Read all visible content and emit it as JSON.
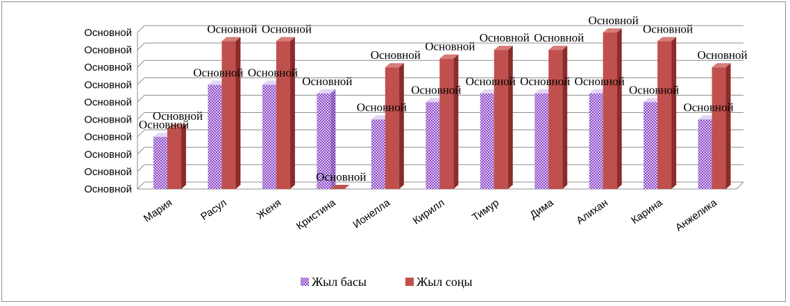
{
  "chart_data": {
    "type": "bar",
    "title": "",
    "xlabel": "",
    "ylabel": "",
    "categories": [
      "Мария",
      "Расул",
      "Женя",
      "Кристина",
      "Ионелла",
      "Кирилл",
      "Тимур",
      "Дима",
      "Алихан",
      "Карина",
      "Анжелика"
    ],
    "y_tick_labels": [
      "Основной",
      "Основной",
      "Основной",
      "Основной",
      "Основной",
      "Основной",
      "Основной",
      "Основной",
      "Основной",
      "Основной"
    ],
    "ylim": [
      0,
      9
    ],
    "series": [
      {
        "name": "Жыл басы",
        "values": [
          3,
          6,
          6,
          5.5,
          4,
          5,
          5.5,
          5.5,
          5.5,
          5,
          4
        ],
        "data_labels": [
          "Основной",
          "Основной",
          "Основной",
          "Основной",
          "Основной",
          "Основной",
          "Основной",
          "Основной",
          "Основной",
          "Основной",
          "Основной"
        ]
      },
      {
        "name": "Жыл соңы",
        "values": [
          3.5,
          8.5,
          8.5,
          0,
          7,
          7.5,
          8,
          8,
          9,
          8.5,
          7
        ],
        "data_labels": [
          "Основной",
          "Основной",
          "Основной",
          "Основной",
          "Основной",
          "Основной",
          "Основной",
          "Основной",
          "Основной",
          "Основной",
          "Основной"
        ]
      }
    ],
    "grid": true,
    "legend_position": "bottom",
    "colors": {
      "series1_fill": "#b9a3dd",
      "series1_pattern": "#8e4ac9",
      "series2_fill": "#c0504d",
      "series2_dark": "#8b2c2a",
      "gridline": "#8c8c8c"
    }
  }
}
